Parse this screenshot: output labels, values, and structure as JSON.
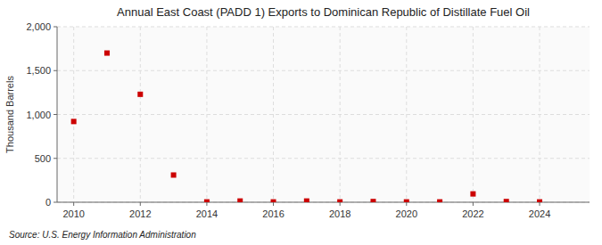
{
  "chart_data": {
    "type": "scatter",
    "title": "Annual East Coast (PADD 1) Exports to Dominican Republic of Distillate Fuel Oil",
    "ylabel": "Thousand Barrels",
    "annotation": "Source: U.S. Energy Information Administration",
    "x": [
      2010,
      2011,
      2012,
      2013,
      2014,
      2015,
      2016,
      2017,
      2018,
      2019,
      2020,
      2021,
      2022,
      2023,
      2024
    ],
    "values": [
      920,
      1700,
      1230,
      310,
      4,
      14,
      4,
      14,
      4,
      8,
      4,
      4,
      95,
      8,
      4
    ],
    "color": "#cc0000",
    "marker": "square",
    "xlim": [
      2009.5,
      2025.5
    ],
    "ylim": [
      0,
      2000
    ],
    "xticks": [
      2010,
      2012,
      2014,
      2016,
      2018,
      2020,
      2022,
      2024
    ],
    "yticks": [
      0,
      500,
      {
        "value": 1000,
        "label": "1,000"
      },
      {
        "value": 1500,
        "label": "1,500"
      },
      {
        "value": 2000,
        "label": "2,000"
      }
    ],
    "grid": true
  }
}
